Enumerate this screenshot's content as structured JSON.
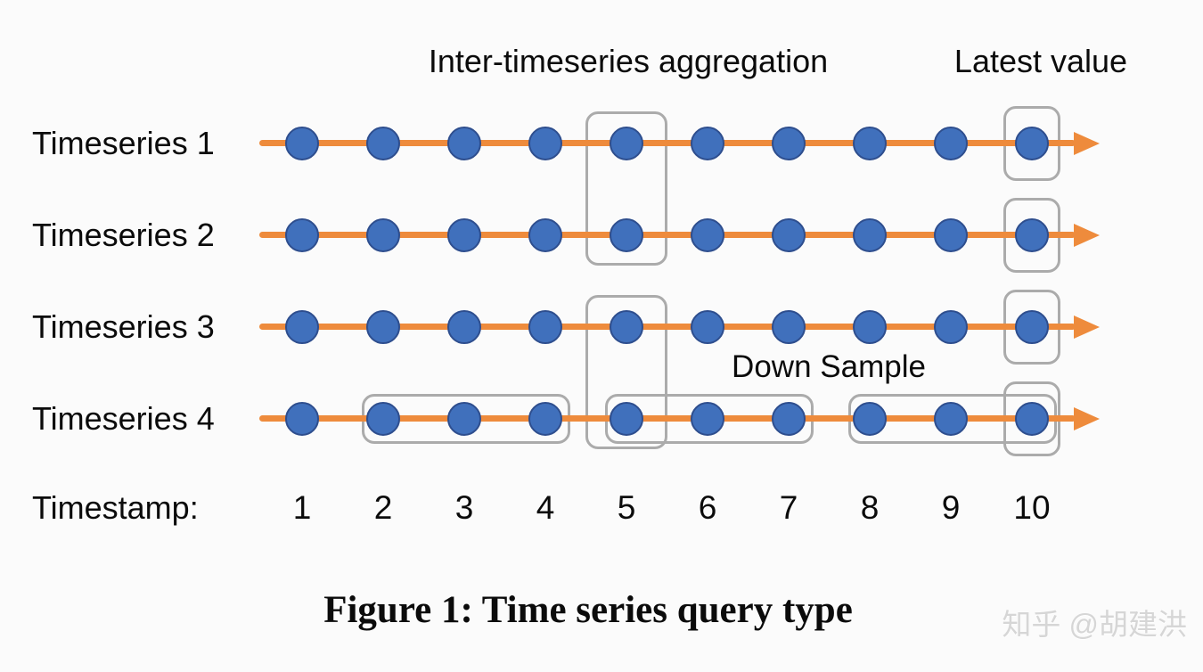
{
  "figure": {
    "caption": "Figure 1: Time series query type",
    "watermark": "知乎 @胡建洪"
  },
  "diagram": {
    "row_labels": [
      "Timeseries 1",
      "Timeseries 2",
      "Timeseries 3",
      "Timeseries 4"
    ],
    "timestamp_label": "Timestamp:",
    "timestamps": [
      "1",
      "2",
      "3",
      "4",
      "5",
      "6",
      "7",
      "8",
      "9",
      "10"
    ],
    "annotations": {
      "inter_timeseries_aggregation": {
        "label": "Inter-timeseries aggregation",
        "timestamp": 5,
        "row_groups": [
          [
            1,
            2
          ],
          [
            3,
            4
          ]
        ]
      },
      "latest_value": {
        "label": "Latest value",
        "timestamp": 10,
        "rows": [
          1,
          2,
          3,
          4
        ]
      },
      "down_sample": {
        "label": "Down Sample",
        "row": 4,
        "timestamp_groups": [
          [
            2,
            4
          ],
          [
            5,
            7
          ],
          [
            8,
            10
          ]
        ]
      }
    },
    "colors": {
      "timeline_orange": "#EE8B3C",
      "dot_fill": "#4070BC",
      "dot_stroke": "#2E4E8E",
      "box_stroke": "#ABABAB",
      "text": "#0B0B0B",
      "watermark_gray": "#D6D6D6",
      "background": "#FBFBFB"
    }
  }
}
